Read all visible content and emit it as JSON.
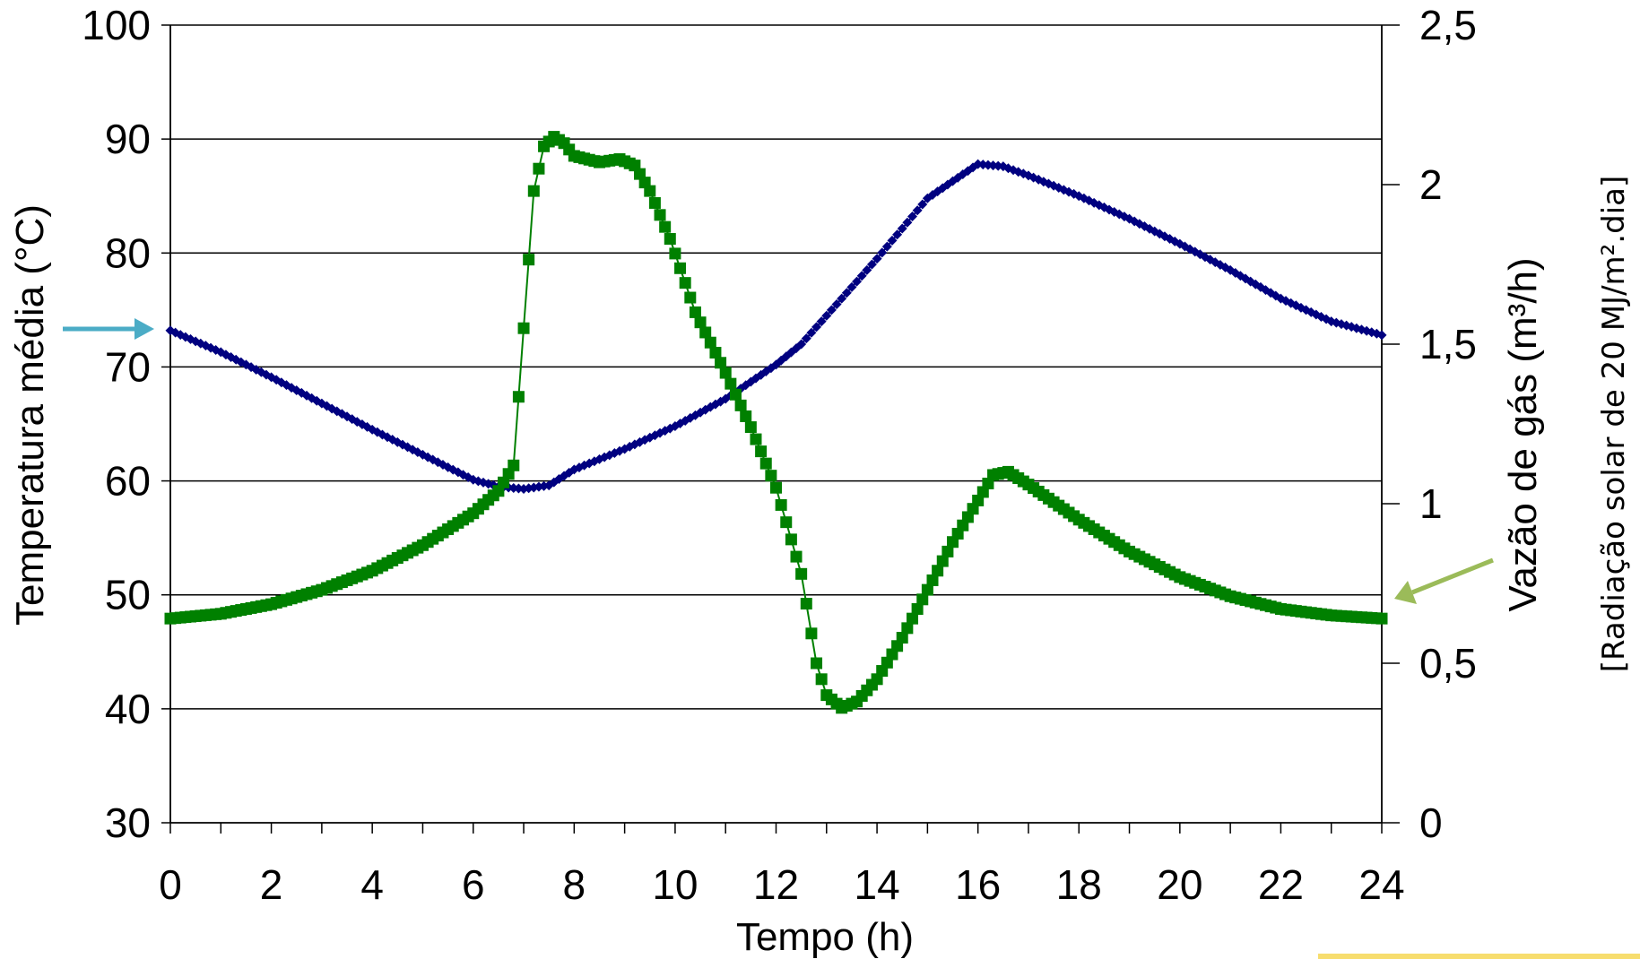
{
  "chart_data": {
    "type": "line",
    "xlabel": "Tempo (h)",
    "ylabel_left": "Temperatura média (°C)",
    "ylabel_right": "Vazão de gás (m³/h)",
    "annotation": "[Radiação solar de 20 MJ/m².dia]",
    "x_range": [
      0,
      24
    ],
    "y_left_range": [
      30,
      100
    ],
    "y_right_range": [
      0,
      2.5
    ],
    "x_ticks": [
      "0",
      "2",
      "4",
      "6",
      "8",
      "10",
      "12",
      "14",
      "16",
      "18",
      "20",
      "22",
      "24"
    ],
    "y_left_ticks": [
      "30",
      "40",
      "50",
      "60",
      "70",
      "80",
      "90",
      "100"
    ],
    "y_right_ticks": [
      "0",
      "0,5",
      "1",
      "1,5",
      "2",
      "2,5"
    ],
    "grid": "horizontal",
    "series": [
      {
        "axis": "left",
        "color": "#000080",
        "marker": "diamond",
        "points": [
          [
            0,
            73.2
          ],
          [
            1,
            71.3
          ],
          [
            2,
            69.1
          ],
          [
            3,
            66.8
          ],
          [
            4,
            64.5
          ],
          [
            5,
            62.3
          ],
          [
            6,
            60.1
          ],
          [
            6.5,
            59.5
          ],
          [
            7,
            59.3
          ],
          [
            7.5,
            59.6
          ],
          [
            8,
            61.0
          ],
          [
            9,
            62.8
          ],
          [
            10,
            64.8
          ],
          [
            11,
            67.2
          ],
          [
            12,
            70.2
          ],
          [
            12.5,
            72.0
          ],
          [
            13,
            74.5
          ],
          [
            14,
            79.5
          ],
          [
            15,
            84.8
          ],
          [
            16,
            87.8
          ],
          [
            16.5,
            87.6
          ],
          [
            17,
            86.8
          ],
          [
            18,
            85.0
          ],
          [
            19,
            83.0
          ],
          [
            20,
            80.8
          ],
          [
            21,
            78.5
          ],
          [
            22,
            76.0
          ],
          [
            23,
            74.0
          ],
          [
            24,
            72.8
          ]
        ]
      },
      {
        "axis": "right",
        "color": "#008000",
        "marker": "square",
        "points": [
          [
            0,
            0.64
          ],
          [
            1,
            0.655
          ],
          [
            2,
            0.685
          ],
          [
            3,
            0.73
          ],
          [
            4,
            0.79
          ],
          [
            5,
            0.87
          ],
          [
            6,
            0.97
          ],
          [
            6.5,
            1.04
          ],
          [
            6.8,
            1.12
          ],
          [
            7.0,
            1.55
          ],
          [
            7.2,
            1.98
          ],
          [
            7.4,
            2.12
          ],
          [
            7.6,
            2.15
          ],
          [
            7.8,
            2.13
          ],
          [
            8.0,
            2.09
          ],
          [
            8.5,
            2.07
          ],
          [
            8.9,
            2.08
          ],
          [
            9.2,
            2.06
          ],
          [
            9.5,
            1.98
          ],
          [
            9.9,
            1.83
          ],
          [
            10.4,
            1.6
          ],
          [
            11,
            1.41
          ],
          [
            11.5,
            1.24
          ],
          [
            12,
            1.05
          ],
          [
            12.5,
            0.78
          ],
          [
            12.8,
            0.5
          ],
          [
            13,
            0.4
          ],
          [
            13.3,
            0.36
          ],
          [
            13.6,
            0.38
          ],
          [
            14,
            0.45
          ],
          [
            14.5,
            0.58
          ],
          [
            15,
            0.73
          ],
          [
            15.5,
            0.88
          ],
          [
            16,
            1.01
          ],
          [
            16.3,
            1.09
          ],
          [
            16.6,
            1.1
          ],
          [
            17,
            1.06
          ],
          [
            18,
            0.95
          ],
          [
            19,
            0.85
          ],
          [
            20,
            0.77
          ],
          [
            21,
            0.71
          ],
          [
            22,
            0.67
          ],
          [
            23,
            0.65
          ],
          [
            24,
            0.64
          ]
        ]
      }
    ],
    "arrows": [
      {
        "color": "#4bacc6",
        "points_to": "left axis at 73"
      },
      {
        "color": "#9bbb59",
        "points_to": "right axis at 0.64"
      }
    ]
  }
}
